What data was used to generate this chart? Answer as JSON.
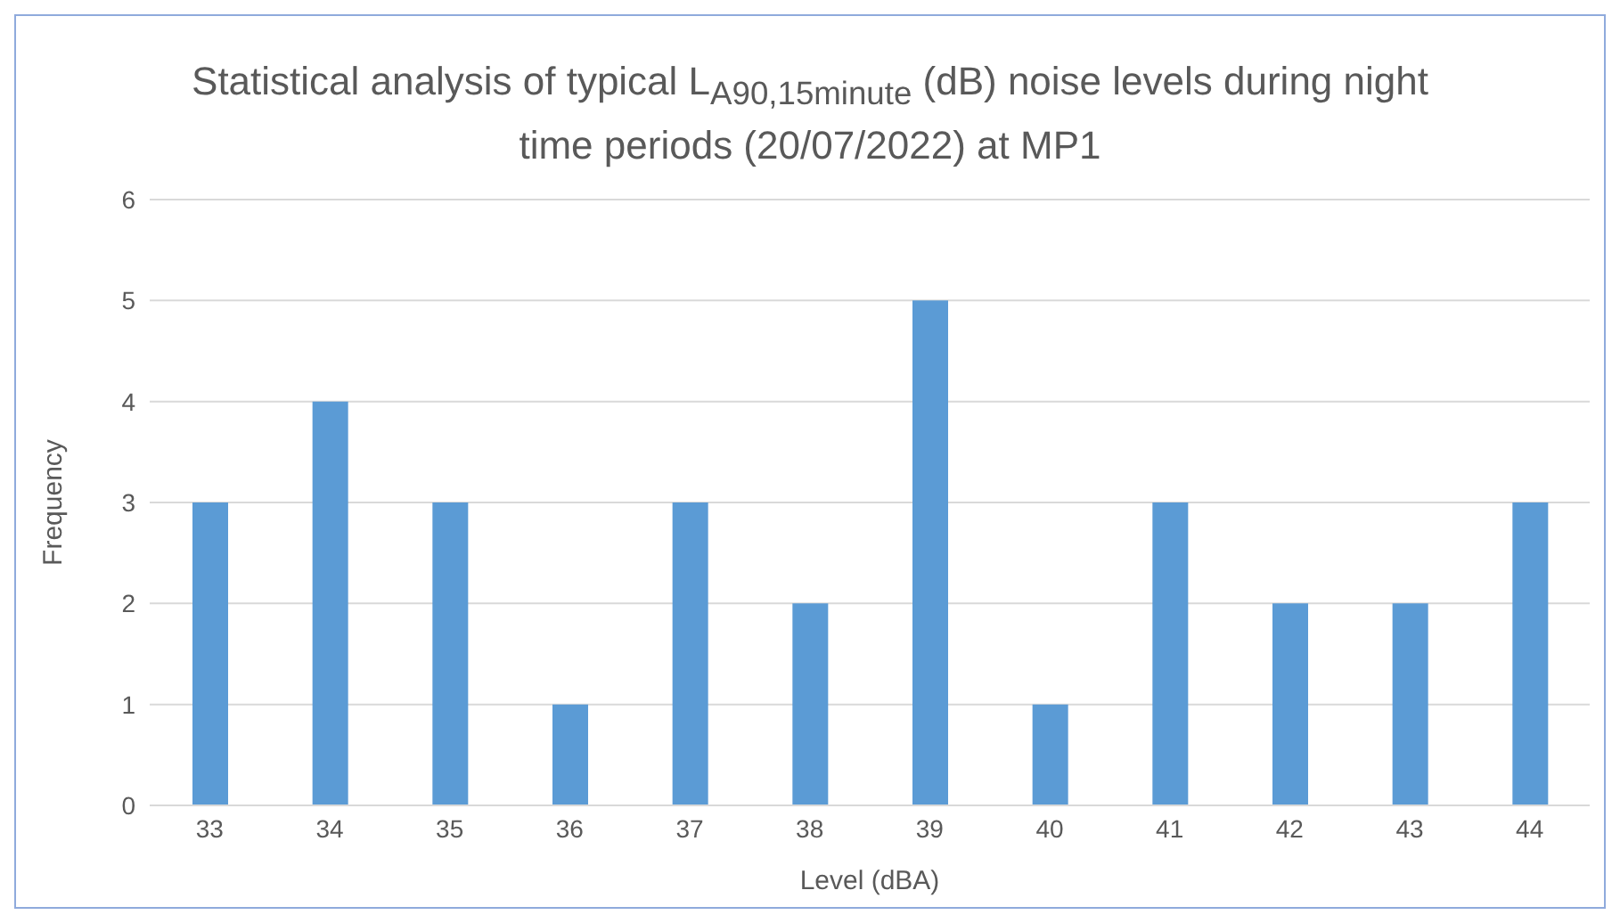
{
  "chart_data": {
    "type": "bar",
    "title": "Statistical analysis of typical L$_{A90,15minute}$ (dB) noise levels during night time periods (20/07/2022) at MP1",
    "xlabel": "Level (dBA)",
    "ylabel": "Frequency",
    "categories": [
      "33",
      "34",
      "35",
      "36",
      "37",
      "38",
      "39",
      "40",
      "41",
      "42",
      "43",
      "44"
    ],
    "values": [
      3,
      4,
      3,
      1,
      3,
      2,
      5,
      1,
      3,
      2,
      2,
      3
    ],
    "color": "#5b9bd5",
    "ylim": [
      0,
      6
    ],
    "yticks": [
      0,
      1,
      2,
      3,
      4,
      5,
      6
    ],
    "grid": "y"
  }
}
